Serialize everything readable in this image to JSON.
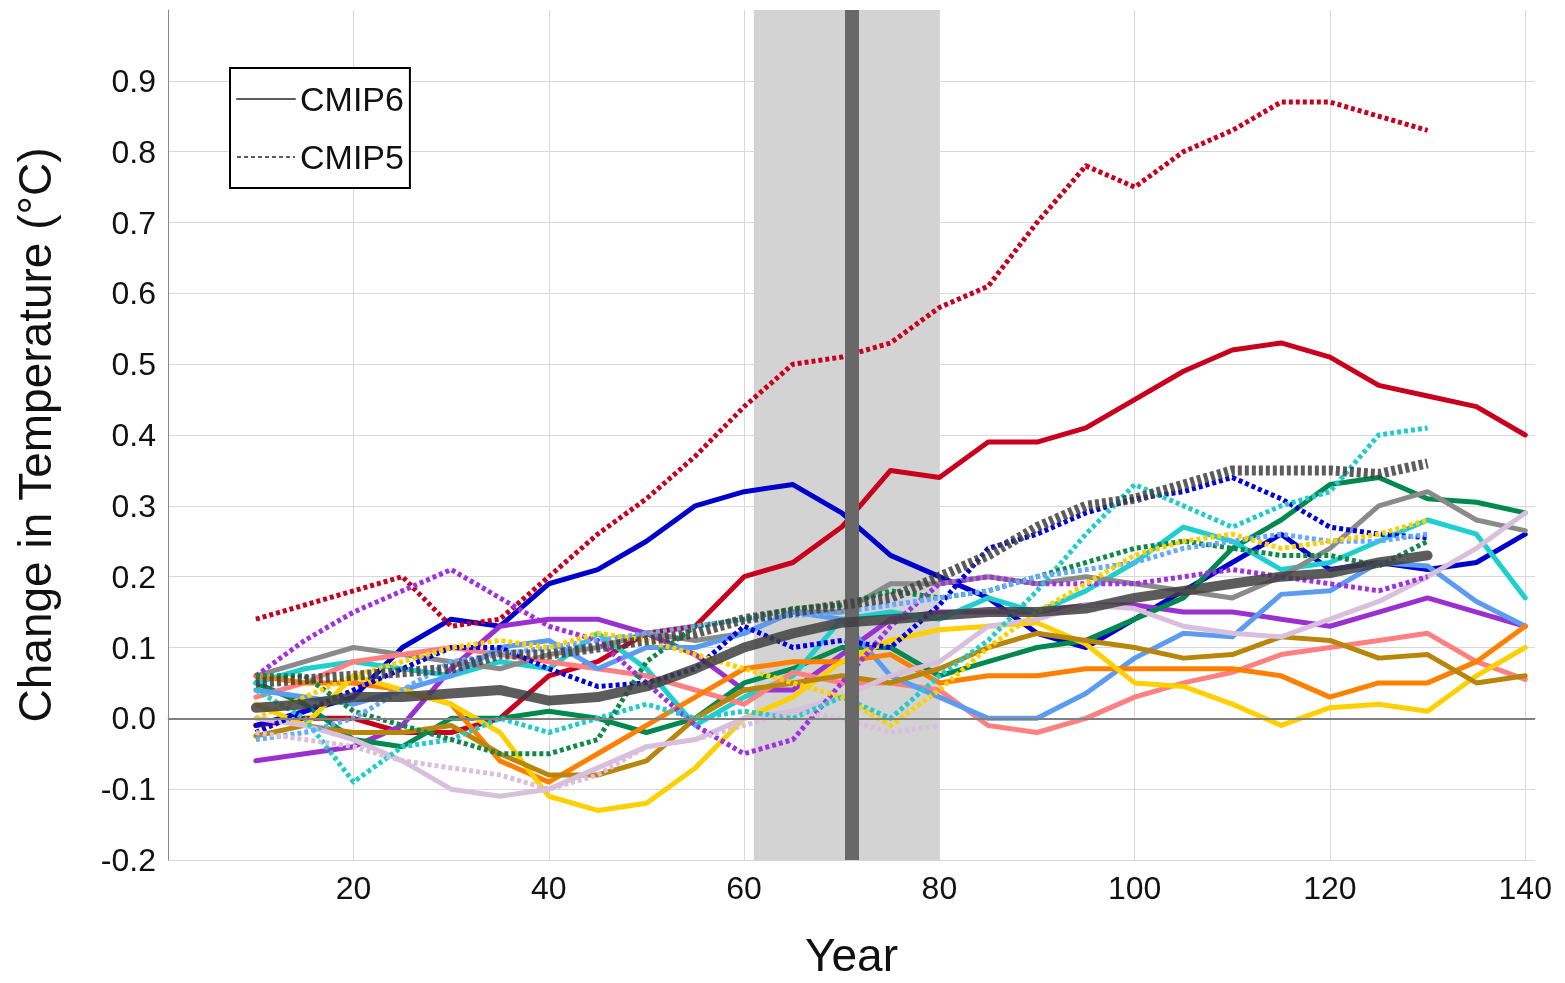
{
  "chart_data": {
    "type": "line",
    "xlabel": "Year",
    "ylabel": "Change in Temperature (°C)",
    "x": [
      10,
      15,
      20,
      25,
      30,
      35,
      40,
      45,
      50,
      55,
      60,
      65,
      70,
      75,
      80,
      85,
      90,
      95,
      100,
      105,
      110,
      115,
      120,
      125,
      130,
      135,
      140
    ],
    "xlim": [
      1,
      141
    ],
    "xticks": [
      20,
      40,
      60,
      80,
      100,
      120,
      140
    ],
    "ylim": [
      -0.2,
      1.0
    ],
    "yticks": [
      -0.2,
      -0.1,
      {
        "value": 0,
        "label": "0.0"
      },
      0.1,
      0.2,
      0.3,
      0.4,
      0.5,
      0.6,
      0.7,
      0.8,
      0.9
    ],
    "grid": true,
    "legend": "top left",
    "marker": "none",
    "line_style": "solid",
    "bands": [
      {
        "axis": "x",
        "from": 61,
        "to": 80,
        "color": "#d3d3d3"
      }
    ],
    "ref_lines": [
      {
        "axis": "y",
        "value": 0,
        "color": "#808080"
      },
      {
        "axis": "x",
        "value": 71,
        "color": "#686868"
      }
    ],
    "series": [
      {
        "color": "#c8001e",
        "line_style": "dotted",
        "values": [
          0.14,
          0.16,
          0.18,
          0.2,
          0.13,
          0.14,
          0.2,
          0.26,
          0.31,
          0.37,
          0.44,
          0.5,
          0.51,
          0.53,
          0.58,
          0.61,
          0.7,
          0.78,
          0.75,
          0.8,
          0.83,
          0.87,
          0.87,
          0.85,
          0.83,
          null,
          null
        ]
      },
      {
        "color": "#a030e0",
        "line_style": "dotted",
        "values": [
          0.06,
          0.11,
          0.15,
          0.18,
          0.21,
          0.17,
          0.13,
          0.11,
          0.05,
          -0.01,
          -0.05,
          -0.03,
          0.05,
          0.13,
          0.19,
          0.2,
          0.19,
          0.19,
          0.19,
          0.2,
          0.21,
          0.2,
          0.19,
          0.18,
          0.2,
          null,
          null
        ]
      },
      {
        "color": "#0000dd",
        "line_style": "dotted",
        "values": [
          -0.02,
          0.01,
          0.04,
          0.07,
          0.1,
          0.1,
          0.07,
          0.045,
          0.05,
          0.07,
          0.13,
          0.1,
          0.11,
          0.1,
          0.16,
          0.24,
          0.26,
          0.29,
          0.31,
          0.32,
          0.34,
          0.31,
          0.27,
          0.26,
          0.255,
          null,
          null
        ]
      },
      {
        "color": "#22cccc",
        "line_style": "dotted",
        "values": [
          0.04,
          0.0,
          -0.09,
          -0.04,
          -0.03,
          0.0,
          -0.02,
          0.0,
          0.02,
          0.0,
          0.01,
          0.0,
          0.03,
          0.0,
          0.06,
          0.11,
          0.18,
          0.26,
          0.33,
          0.3,
          0.27,
          0.3,
          0.32,
          0.4,
          0.41,
          null,
          null
        ]
      },
      {
        "color": "#10884a",
        "line_style": "dotted",
        "values": [
          0.06,
          0.06,
          0.01,
          -0.01,
          -0.03,
          -0.05,
          -0.05,
          -0.03,
          0.08,
          0.13,
          0.14,
          0.155,
          0.16,
          0.18,
          0.17,
          0.18,
          0.2,
          0.22,
          0.24,
          0.25,
          0.24,
          0.23,
          0.23,
          0.215,
          0.25,
          null,
          null
        ]
      },
      {
        "color": "#66aaff",
        "line_style": "dotted",
        "values": [
          -0.03,
          -0.02,
          0.0,
          0.04,
          0.08,
          0.09,
          0.1,
          0.11,
          0.12,
          0.13,
          0.14,
          0.145,
          0.15,
          0.16,
          0.17,
          0.18,
          0.2,
          0.21,
          0.22,
          0.24,
          0.25,
          0.26,
          0.25,
          0.25,
          0.26,
          null,
          null
        ]
      },
      {
        "color": "#ffd000",
        "line_style": "dotted",
        "values": [
          0.0,
          0.03,
          0.06,
          0.08,
          0.1,
          0.11,
          0.1,
          0.12,
          0.11,
          0.09,
          0.07,
          0.05,
          0.03,
          -0.01,
          0.04,
          0.1,
          0.15,
          0.19,
          0.23,
          0.25,
          0.26,
          0.24,
          0.25,
          0.26,
          0.28,
          null,
          null
        ]
      },
      {
        "color": "#d8bfdc",
        "line_style": "dotted",
        "values": [
          -0.02,
          -0.03,
          -0.04,
          -0.06,
          -0.07,
          -0.08,
          -0.1,
          -0.08,
          -0.04,
          -0.03,
          -0.01,
          0.01,
          0.0,
          -0.02,
          -0.01,
          null,
          null,
          null,
          null,
          null,
          null,
          null,
          null,
          null,
          null,
          null,
          null
        ]
      },
      {
        "color": "#c8001e",
        "values": [
          -0.01,
          0.0,
          0.0,
          -0.02,
          -0.02,
          0.0,
          0.06,
          0.08,
          0.12,
          0.13,
          0.2,
          0.22,
          0.27,
          0.35,
          0.34,
          0.39,
          0.39,
          0.41,
          0.45,
          0.49,
          0.52,
          0.53,
          0.51,
          0.47,
          0.455,
          0.44,
          0.4
        ]
      },
      {
        "color": "#0000cc",
        "values": [
          -0.01,
          0.01,
          0.03,
          0.1,
          0.14,
          0.13,
          0.19,
          0.21,
          0.25,
          0.3,
          0.32,
          0.33,
          0.29,
          0.23,
          0.2,
          0.17,
          0.12,
          0.1,
          0.14,
          0.18,
          0.22,
          0.26,
          0.21,
          0.22,
          0.21,
          0.22,
          0.26
        ]
      },
      {
        "color": "#9b30d0",
        "values": [
          -0.06,
          -0.05,
          -0.04,
          -0.01,
          0.07,
          0.13,
          0.14,
          0.14,
          0.12,
          0.09,
          0.04,
          0.04,
          0.09,
          0.14,
          0.15,
          0.15,
          0.15,
          0.16,
          0.16,
          0.15,
          0.15,
          0.14,
          0.13,
          0.15,
          0.17,
          0.15,
          0.13
        ]
      },
      {
        "color": "#00894f",
        "values": [
          0.05,
          0.02,
          -0.03,
          -0.04,
          0.0,
          0.0,
          0.01,
          0.0,
          -0.02,
          0.0,
          0.05,
          0.07,
          0.1,
          0.1,
          0.06,
          0.08,
          0.1,
          0.11,
          0.14,
          0.17,
          0.24,
          0.28,
          0.33,
          0.34,
          0.31,
          0.305,
          0.29
        ]
      },
      {
        "color": "#1fcfcf",
        "values": [
          0.05,
          0.07,
          0.08,
          0.07,
          0.06,
          0.08,
          0.07,
          0.12,
          0.07,
          -0.01,
          0.03,
          0.06,
          0.14,
          0.15,
          0.14,
          0.17,
          0.15,
          0.18,
          0.22,
          0.27,
          0.25,
          0.21,
          0.22,
          0.25,
          0.28,
          0.26,
          0.17
        ]
      },
      {
        "color": "#8a8a8a",
        "values": [
          0.06,
          0.08,
          0.1,
          0.09,
          0.08,
          0.07,
          0.09,
          0.1,
          0.12,
          0.11,
          0.12,
          0.15,
          0.15,
          0.19,
          0.19,
          0.2,
          0.19,
          0.2,
          0.19,
          0.18,
          0.17,
          0.2,
          0.24,
          0.3,
          0.32,
          0.28,
          0.265
        ]
      },
      {
        "color": "#ff8080",
        "values": [
          0.03,
          0.05,
          0.08,
          0.09,
          0.1,
          0.09,
          0.08,
          0.07,
          0.06,
          0.04,
          0.02,
          0.065,
          0.05,
          0.05,
          0.04,
          -0.01,
          -0.02,
          0.0,
          0.03,
          0.05,
          0.065,
          0.09,
          0.1,
          0.11,
          0.12,
          0.08,
          0.055
        ]
      },
      {
        "color": "#5b9cf0",
        "values": [
          0.04,
          0.03,
          0.02,
          0.04,
          0.06,
          0.1,
          0.11,
          0.07,
          0.1,
          0.1,
          0.12,
          0.15,
          0.14,
          0.06,
          0.03,
          0.0,
          0.0,
          0.035,
          0.085,
          0.12,
          0.115,
          0.175,
          0.18,
          0.22,
          0.215,
          0.165,
          0.13
        ]
      },
      {
        "color": "#ff8000",
        "values": [
          0.06,
          0.05,
          0.05,
          0.04,
          0.02,
          -0.06,
          -0.09,
          -0.05,
          -0.01,
          0.03,
          0.07,
          0.08,
          0.08,
          0.09,
          0.05,
          0.06,
          0.06,
          0.07,
          0.07,
          0.07,
          0.07,
          0.06,
          0.03,
          0.05,
          0.05,
          0.08,
          0.13
        ]
      },
      {
        "color": "#ffd000",
        "values": [
          0.02,
          -0.01,
          0.06,
          0.04,
          0.02,
          -0.02,
          -0.11,
          -0.13,
          -0.12,
          -0.07,
          0.0,
          0.03,
          0.08,
          0.11,
          0.125,
          0.13,
          0.135,
          0.105,
          0.05,
          0.045,
          0.02,
          -0.01,
          0.015,
          0.02,
          0.01,
          0.06,
          0.1
        ]
      },
      {
        "color": "#b8860b",
        "values": [
          -0.025,
          -0.01,
          -0.02,
          -0.02,
          -0.01,
          -0.05,
          -0.08,
          -0.08,
          -0.06,
          0.0,
          0.04,
          0.05,
          0.06,
          0.05,
          0.07,
          0.1,
          0.12,
          0.11,
          0.1,
          0.085,
          0.09,
          0.115,
          0.11,
          0.085,
          0.09,
          0.05,
          0.06
        ]
      },
      {
        "color": "#d8bfdc",
        "values": [
          0.0,
          -0.01,
          -0.03,
          -0.06,
          -0.1,
          -0.11,
          -0.1,
          -0.07,
          -0.04,
          -0.03,
          0.0,
          0.01,
          0.03,
          0.06,
          0.08,
          0.13,
          0.14,
          0.16,
          0.155,
          0.13,
          0.12,
          0.115,
          0.14,
          0.165,
          0.2,
          0.24,
          0.29
        ]
      },
      {
        "name": "CMIP6",
        "color": "#404040",
        "values": [
          0.015,
          0.02,
          0.03,
          0.03,
          0.035,
          0.04,
          0.025,
          0.03,
          0.045,
          0.07,
          0.1,
          0.12,
          0.135,
          0.14,
          0.145,
          0.15,
          0.15,
          0.155,
          0.17,
          0.18,
          0.19,
          0.2,
          0.205,
          0.22,
          0.23,
          null,
          null
        ]
      },
      {
        "name": "CMIP5",
        "color": "#404040",
        "line_style": "dotted",
        "values": [
          0.05,
          0.055,
          0.06,
          0.065,
          0.07,
          0.09,
          0.09,
          0.1,
          0.11,
          0.12,
          0.14,
          0.15,
          0.16,
          0.17,
          0.2,
          0.23,
          0.27,
          0.3,
          0.31,
          0.33,
          0.35,
          0.35,
          0.35,
          0.345,
          0.36,
          null,
          null
        ]
      }
    ]
  }
}
